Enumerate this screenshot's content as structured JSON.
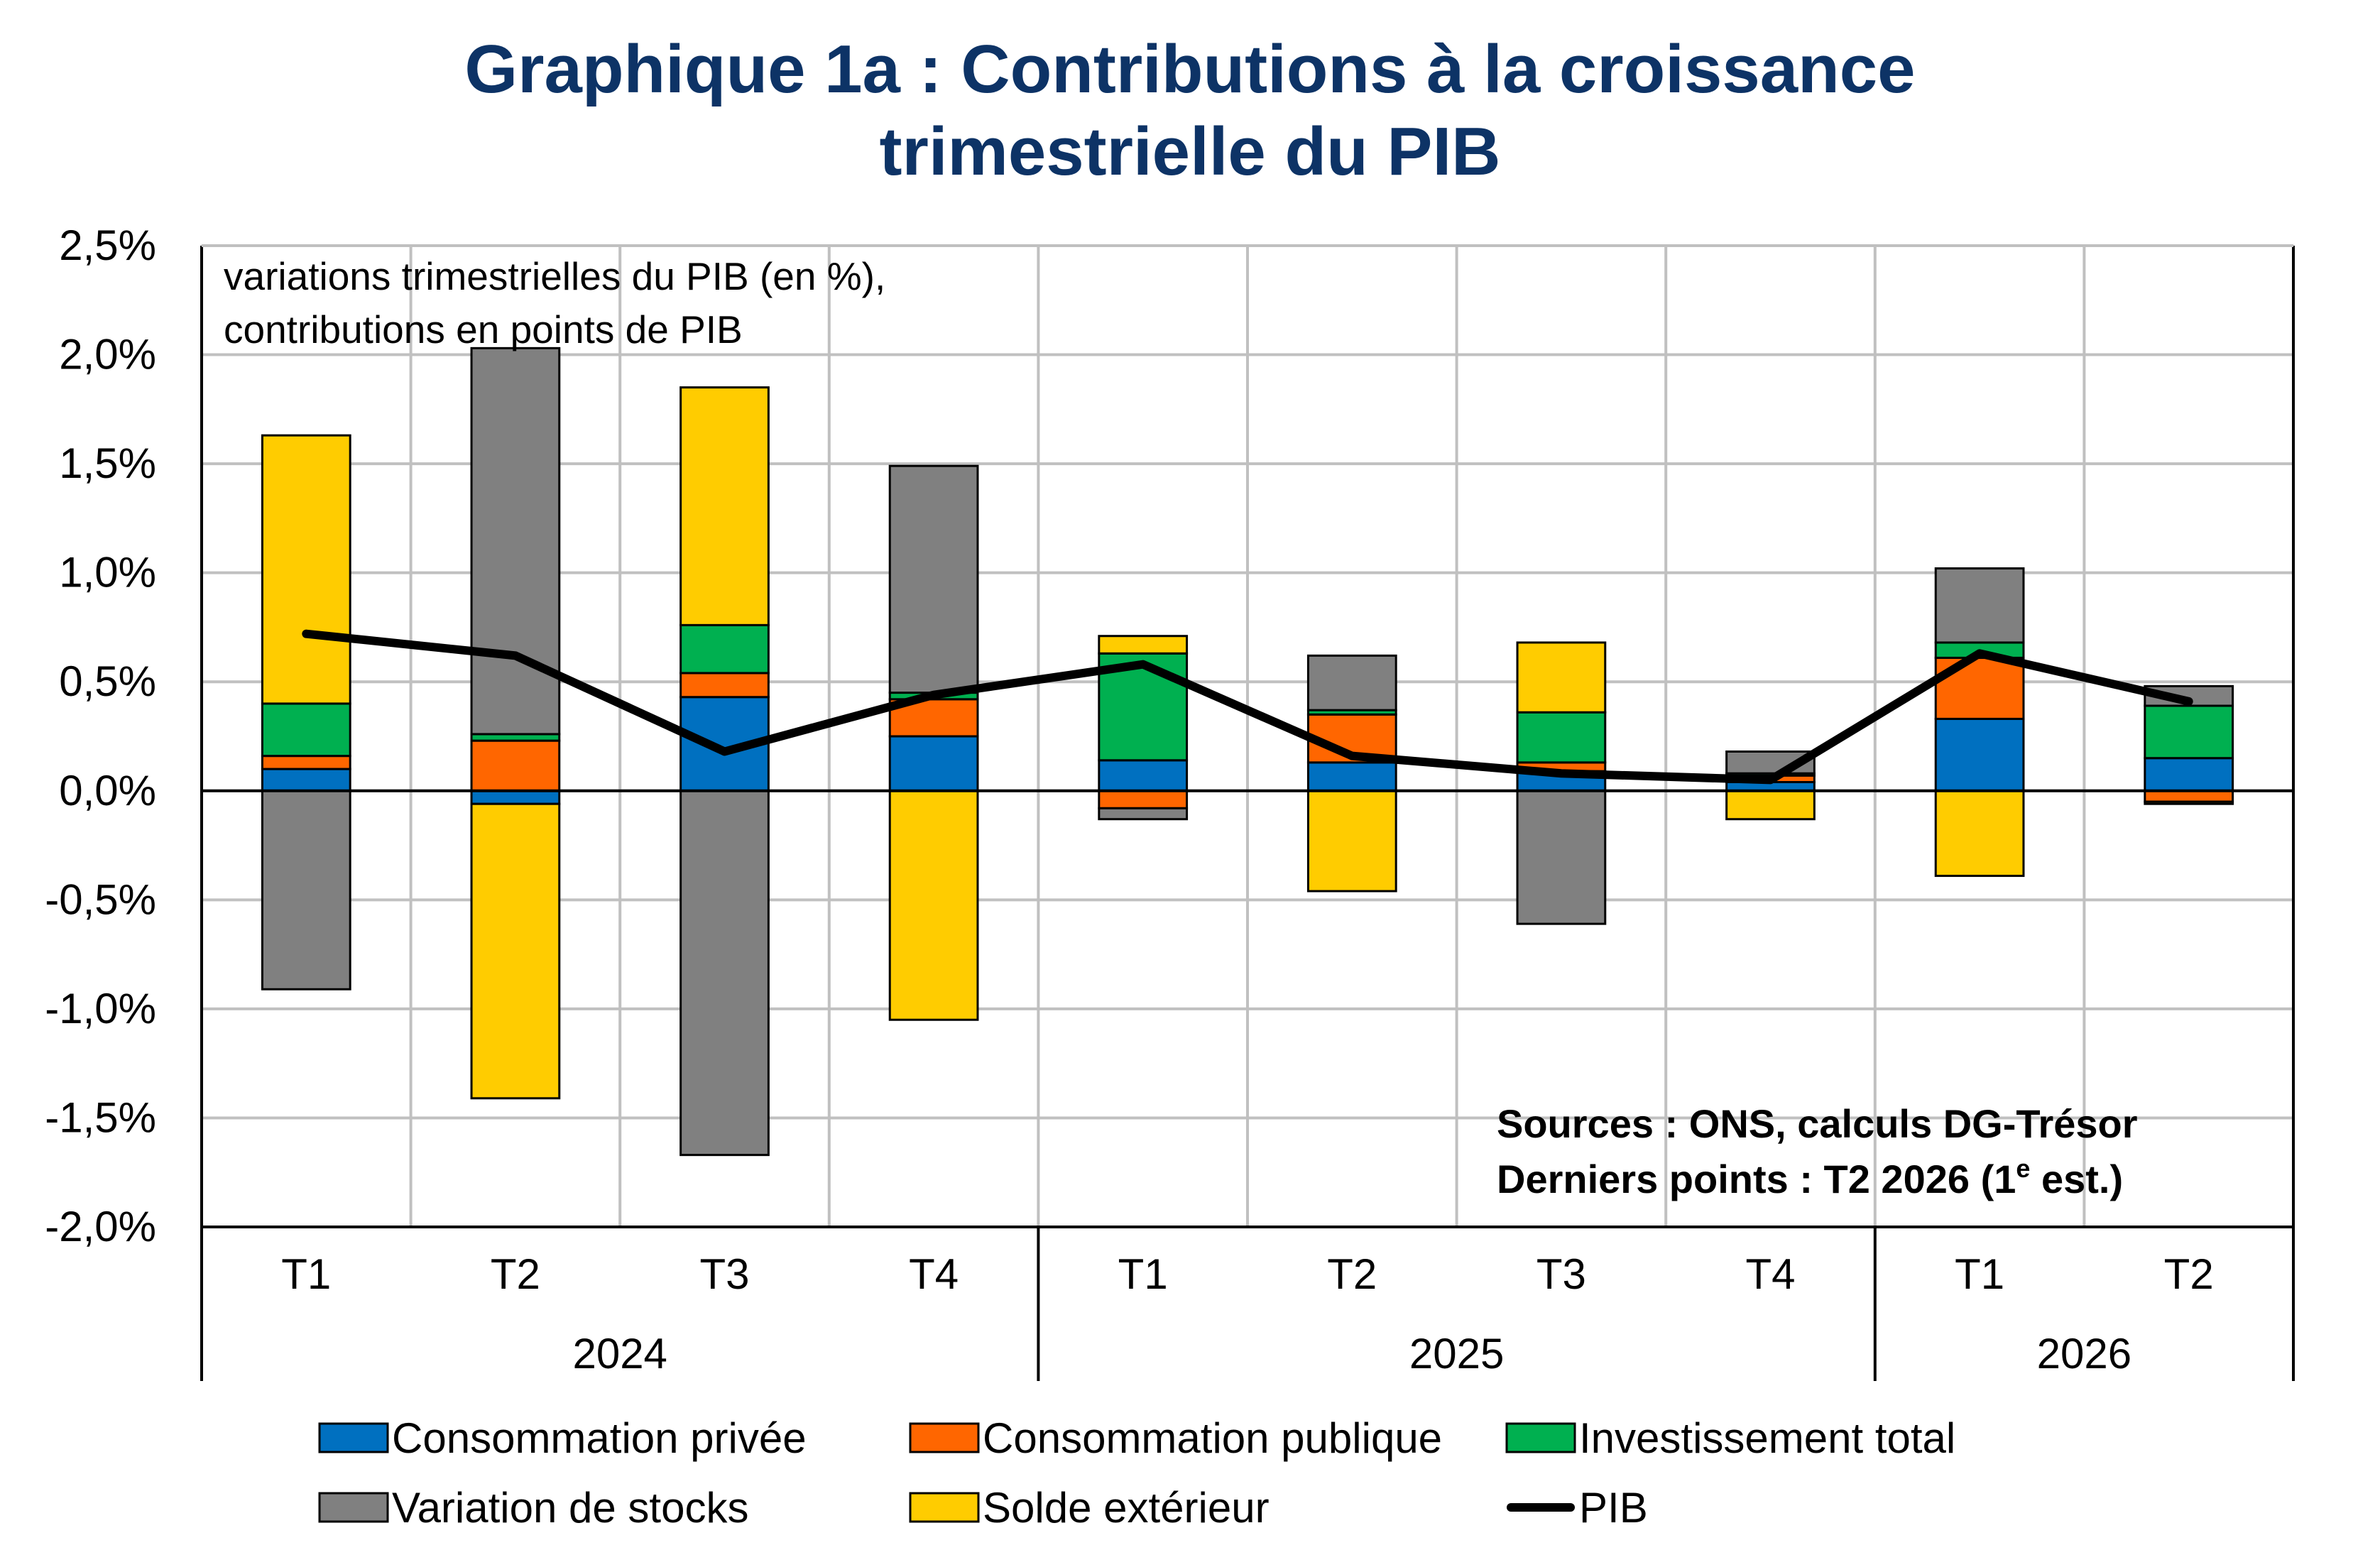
{
  "title": {
    "line1": "Graphique 1a  : Contributions à la croissance",
    "line2": "trimestrielle du PIB"
  },
  "chart_data": {
    "type": "bar",
    "stacked": true,
    "note": [
      "variations trimestrielles du PIB (en %),",
      "contributions en points de PIB"
    ],
    "sources": {
      "line1": "Sources : ONS, calculs DG-Trésor",
      "line2_prefix": "Derniers points : T2 2026 (1",
      "line2_sup": "e",
      "line2_suffix": " est.)"
    },
    "ylim": [
      -2.0,
      2.5
    ],
    "yticks": [
      2.5,
      2.0,
      1.5,
      1.0,
      0.5,
      0.0,
      -0.5,
      -1.0,
      -1.5,
      -2.0
    ],
    "ytick_labels": [
      "2,5%",
      "2,0%",
      "1,5%",
      "1,0%",
      "0,5%",
      "0,0%",
      "-0,5%",
      "-1,0%",
      "-1,5%",
      "-2,0%"
    ],
    "grid": true,
    "categories": [
      "T1",
      "T2",
      "T3",
      "T4",
      "T1",
      "T2",
      "T3",
      "T4",
      "T1",
      "T2"
    ],
    "groups": [
      {
        "label": "2024",
        "count": 4
      },
      {
        "label": "2025",
        "count": 4
      },
      {
        "label": "2026",
        "count": 2
      }
    ],
    "series": [
      {
        "name": "Consommation privée",
        "color": "#0070c0",
        "values": [
          0.1,
          -0.06,
          0.43,
          0.25,
          0.14,
          0.13,
          0.09,
          0.04,
          0.33,
          0.15
        ]
      },
      {
        "name": "Consommation publique",
        "color": "#ff6600",
        "values": [
          0.06,
          0.23,
          0.11,
          0.17,
          -0.08,
          0.22,
          0.04,
          0.03,
          0.28,
          -0.05
        ]
      },
      {
        "name": "Investissement total",
        "color": "#00b050",
        "values": [
          0.24,
          0.03,
          0.22,
          0.03,
          0.49,
          0.02,
          0.23,
          0.01,
          0.07,
          0.24
        ]
      },
      {
        "name": "Variation de stocks",
        "color": "#808080",
        "values": [
          -0.91,
          1.77,
          -1.67,
          1.04,
          -0.05,
          0.25,
          -0.61,
          0.1,
          0.34,
          0.09
        ]
      },
      {
        "name": "Solde extérieur",
        "color": "#ffcc00",
        "values": [
          1.23,
          -1.35,
          1.09,
          -1.05,
          0.08,
          -0.46,
          0.32,
          -0.13,
          -0.39,
          -0.01
        ]
      }
    ],
    "line_series": {
      "name": "PIB",
      "color": "#000000",
      "values": [
        0.72,
        0.62,
        0.18,
        0.44,
        0.58,
        0.16,
        0.08,
        0.05,
        0.63,
        0.41
      ]
    },
    "legend": {
      "placement": "bottom",
      "items": [
        "Consommation privée",
        "Consommation publique",
        "Investissement total",
        "Variation de stocks",
        "Solde extérieur",
        "PIB"
      ]
    }
  }
}
